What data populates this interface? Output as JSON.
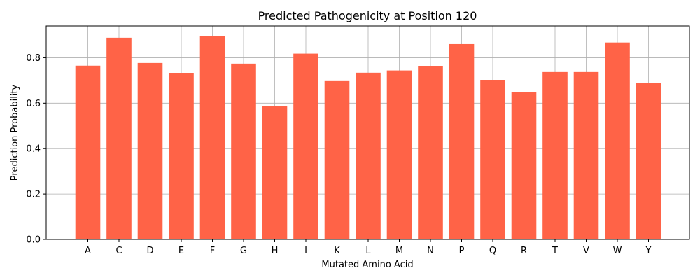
{
  "chart_data": {
    "type": "bar",
    "title": "Predicted Pathogenicity at Position 120",
    "xlabel": "Mutated Amino Acid",
    "ylabel": "Prediction Probability",
    "categories": [
      "A",
      "C",
      "D",
      "E",
      "F",
      "G",
      "H",
      "I",
      "K",
      "L",
      "M",
      "N",
      "P",
      "Q",
      "R",
      "T",
      "V",
      "W",
      "Y"
    ],
    "values": [
      0.765,
      0.888,
      0.777,
      0.732,
      0.895,
      0.774,
      0.586,
      0.818,
      0.697,
      0.734,
      0.744,
      0.762,
      0.86,
      0.7,
      0.648,
      0.737,
      0.737,
      0.867,
      0.688
    ],
    "ylim": [
      0,
      0.94
    ],
    "yticks": [
      0.0,
      0.2,
      0.4,
      0.6,
      0.8
    ],
    "ytick_labels": [
      "0.0",
      "0.2",
      "0.4",
      "0.6",
      "0.8"
    ],
    "grid": true,
    "bar_color": "#ff6347"
  }
}
